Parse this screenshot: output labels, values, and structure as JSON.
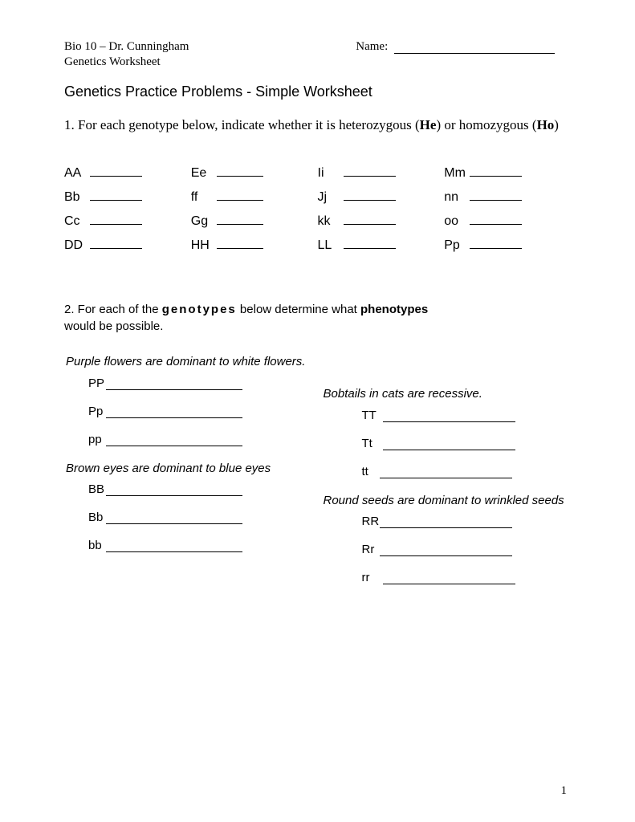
{
  "header": {
    "course": "Bio 10 – Dr. Cunningham",
    "name_label": "Name:",
    "subtitle": "Genetics Worksheet"
  },
  "title": "Genetics Practice Problems - Simple Worksheet",
  "q1": {
    "prefix": "1. For each genotype below, indicate whether it is heterozygous (",
    "he": "He",
    "middle": ") or homozygous (",
    "ho": "Ho",
    "suffix": ")"
  },
  "genotypes": {
    "col1": [
      "AA",
      "Bb",
      "Cc",
      "DD"
    ],
    "col2": [
      "Ee",
      "ff",
      "Gg",
      "HH"
    ],
    "col3": [
      "Ii",
      "Jj",
      "kk",
      "LL"
    ],
    "col4": [
      "Mm",
      "nn",
      "oo",
      "Pp"
    ]
  },
  "q2": {
    "prefix": "2. For each of the ",
    "genotypes": "genotypes",
    "middle": " below determine what ",
    "phenotypes": "phenotypes",
    "suffix": " would be possible."
  },
  "pheno": {
    "purple": {
      "prompt": "Purple flowers are dominant to white flowers.",
      "items": [
        "PP",
        "Pp",
        "pp"
      ]
    },
    "brown": {
      "prompt": "Brown eyes are dominant to blue eyes",
      "items": [
        "BB",
        "Bb",
        "bb"
      ]
    },
    "bobtail": {
      "prompt": "Bobtails in cats are recessive.",
      "items": [
        "TT",
        "Tt",
        "tt"
      ]
    },
    "round": {
      "prompt": "Round seeds are dominant to wrinkled seeds",
      "items": [
        "RR",
        "Rr",
        "rr"
      ]
    }
  },
  "page_number": "1"
}
